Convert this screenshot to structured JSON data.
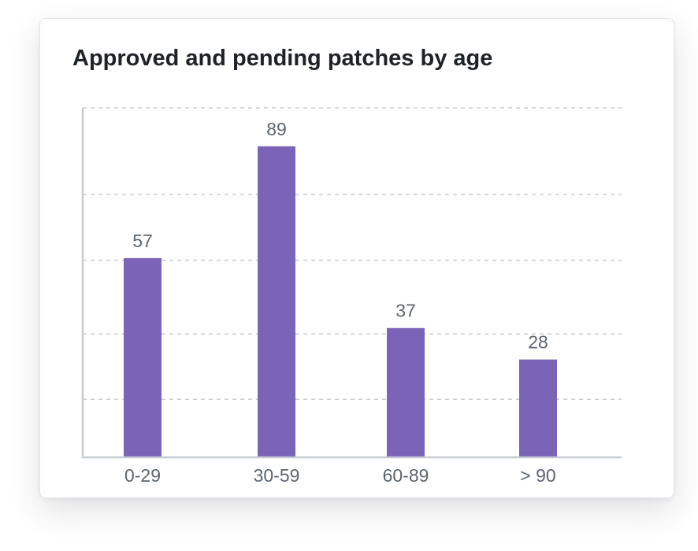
{
  "chart_data": {
    "type": "bar",
    "title": "Approved and pending patches by age",
    "categories": [
      "0-29",
      "30-59",
      "60-89",
      "> 90"
    ],
    "values": [
      57,
      89,
      37,
      28
    ],
    "ylim": [
      0,
      100
    ],
    "grid": true,
    "colors": {
      "bar": "#7b64b8"
    }
  }
}
